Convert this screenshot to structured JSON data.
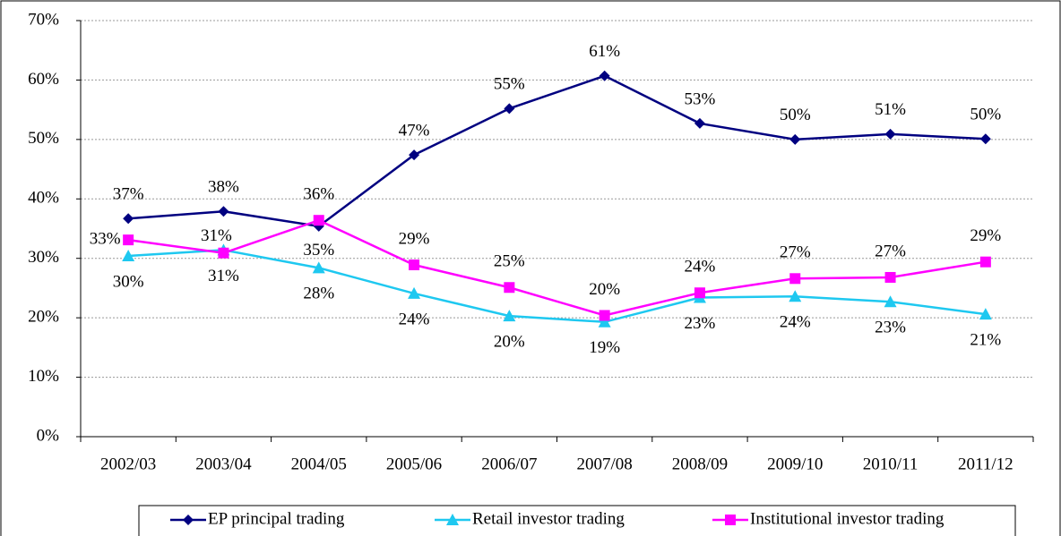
{
  "chart_data": {
    "type": "line",
    "categories": [
      "2002/03",
      "2003/04",
      "2004/05",
      "2005/06",
      "2006/07",
      "2007/08",
      "2008/09",
      "2009/10",
      "2010/11",
      "2011/12"
    ],
    "series": [
      {
        "name": "EP principal trading",
        "color": "#000080",
        "marker": "diamond",
        "values": [
          36.7,
          37.9,
          35.4,
          47.4,
          55.2,
          60.7,
          52.7,
          50.0,
          50.9,
          50.1
        ],
        "value_labels": [
          "37%",
          "38%",
          "35%",
          "47%",
          "55%",
          "61%",
          "53%",
          "50%",
          "51%",
          "50%"
        ]
      },
      {
        "name": "Retail investor trading",
        "color": "#1ec8f0",
        "marker": "triangle",
        "values": [
          30.4,
          31.4,
          28.4,
          24.1,
          20.3,
          19.3,
          23.4,
          23.6,
          22.7,
          20.6
        ],
        "value_labels": [
          "30%",
          "31%",
          "28%",
          "24%",
          "20%",
          "19%",
          "23%",
          "24%",
          "23%",
          "21%"
        ]
      },
      {
        "name": "Institutional investor trading",
        "color": "#ff00ff",
        "marker": "square",
        "values": [
          33.1,
          30.9,
          36.4,
          28.9,
          25.1,
          20.4,
          24.2,
          26.6,
          26.8,
          29.4
        ],
        "value_labels": [
          "33%",
          "31%",
          "36%",
          "29%",
          "25%",
          "20%",
          "24%",
          "27%",
          "27%",
          "29%"
        ]
      }
    ],
    "ylim": [
      0,
      70
    ],
    "yticks": [
      {
        "value": 0,
        "label": "0%"
      },
      {
        "value": 10,
        "label": "10%"
      },
      {
        "value": 20,
        "label": "20%"
      },
      {
        "value": 30,
        "label": "30%"
      },
      {
        "value": 40,
        "label": "40%"
      },
      {
        "value": 50,
        "label": "50%"
      },
      {
        "value": 60,
        "label": "60%"
      },
      {
        "value": 70,
        "label": "70%"
      }
    ],
    "grid": true,
    "legend": "bottom"
  }
}
